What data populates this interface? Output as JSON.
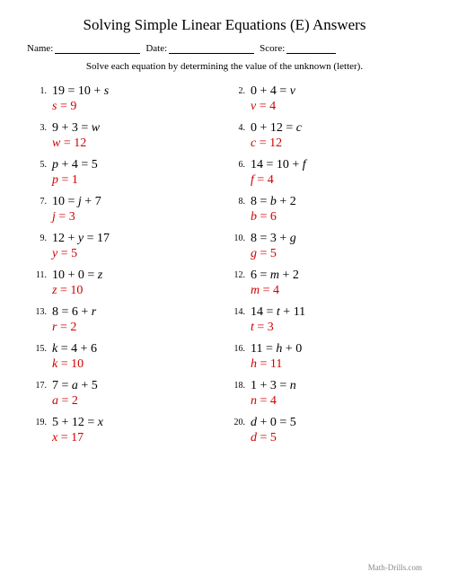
{
  "title": "Solving Simple Linear Equations (E) Answers",
  "header": {
    "name_label": "Name:",
    "date_label": "Date:",
    "score_label": "Score:"
  },
  "instruction": "Solve each equation by determining the value of the unknown (letter).",
  "answer_color": "#d00000",
  "problems": [
    {
      "n": "1.",
      "eq_pre": "19 = 10 + ",
      "var": "s",
      "eq_post": "",
      "a_var": "s",
      "a_val": "9"
    },
    {
      "n": "2.",
      "eq_pre": "0 + 4 = ",
      "var": "v",
      "eq_post": "",
      "a_var": "v",
      "a_val": "4"
    },
    {
      "n": "3.",
      "eq_pre": "9 + 3 = ",
      "var": "w",
      "eq_post": "",
      "a_var": "w",
      "a_val": "12"
    },
    {
      "n": "4.",
      "eq_pre": "0 + 12 = ",
      "var": "c",
      "eq_post": "",
      "a_var": "c",
      "a_val": "12"
    },
    {
      "n": "5.",
      "eq_pre": "",
      "var": "p",
      "eq_post": " + 4 = 5",
      "a_var": "p",
      "a_val": "1"
    },
    {
      "n": "6.",
      "eq_pre": "14 = 10 + ",
      "var": "f",
      "eq_post": "",
      "a_var": "f",
      "a_val": "4"
    },
    {
      "n": "7.",
      "eq_pre": "10 = ",
      "var": "j",
      "eq_post": " + 7",
      "a_var": "j",
      "a_val": "3"
    },
    {
      "n": "8.",
      "eq_pre": "8 = ",
      "var": "b",
      "eq_post": " + 2",
      "a_var": "b",
      "a_val": "6"
    },
    {
      "n": "9.",
      "eq_pre": "12 + ",
      "var": "y",
      "eq_post": " = 17",
      "a_var": "y",
      "a_val": "5"
    },
    {
      "n": "10.",
      "eq_pre": "8 = 3 + ",
      "var": "g",
      "eq_post": "",
      "a_var": "g",
      "a_val": "5"
    },
    {
      "n": "11.",
      "eq_pre": "10 + 0 = ",
      "var": "z",
      "eq_post": "",
      "a_var": "z",
      "a_val": "10"
    },
    {
      "n": "12.",
      "eq_pre": "6 = ",
      "var": "m",
      "eq_post": " + 2",
      "a_var": "m",
      "a_val": "4"
    },
    {
      "n": "13.",
      "eq_pre": "8 = 6 + ",
      "var": "r",
      "eq_post": "",
      "a_var": "r",
      "a_val": "2"
    },
    {
      "n": "14.",
      "eq_pre": "14 = ",
      "var": "t",
      "eq_post": " + 11",
      "a_var": "t",
      "a_val": "3"
    },
    {
      "n": "15.",
      "eq_pre": "",
      "var": "k",
      "eq_post": " = 4 + 6",
      "a_var": "k",
      "a_val": "10"
    },
    {
      "n": "16.",
      "eq_pre": "11 = ",
      "var": "h",
      "eq_post": " + 0",
      "a_var": "h",
      "a_val": "11"
    },
    {
      "n": "17.",
      "eq_pre": "7 = ",
      "var": "a",
      "eq_post": " + 5",
      "a_var": "a",
      "a_val": "2"
    },
    {
      "n": "18.",
      "eq_pre": "1 + 3 = ",
      "var": "n",
      "eq_post": "",
      "a_var": "n",
      "a_val": "4"
    },
    {
      "n": "19.",
      "eq_pre": "5 + 12 = ",
      "var": "x",
      "eq_post": "",
      "a_var": "x",
      "a_val": "17"
    },
    {
      "n": "20.",
      "eq_pre": "",
      "var": "d",
      "eq_post": " + 0 = 5",
      "a_var": "d",
      "a_val": "5"
    }
  ],
  "footer": "Math-Drills.com"
}
